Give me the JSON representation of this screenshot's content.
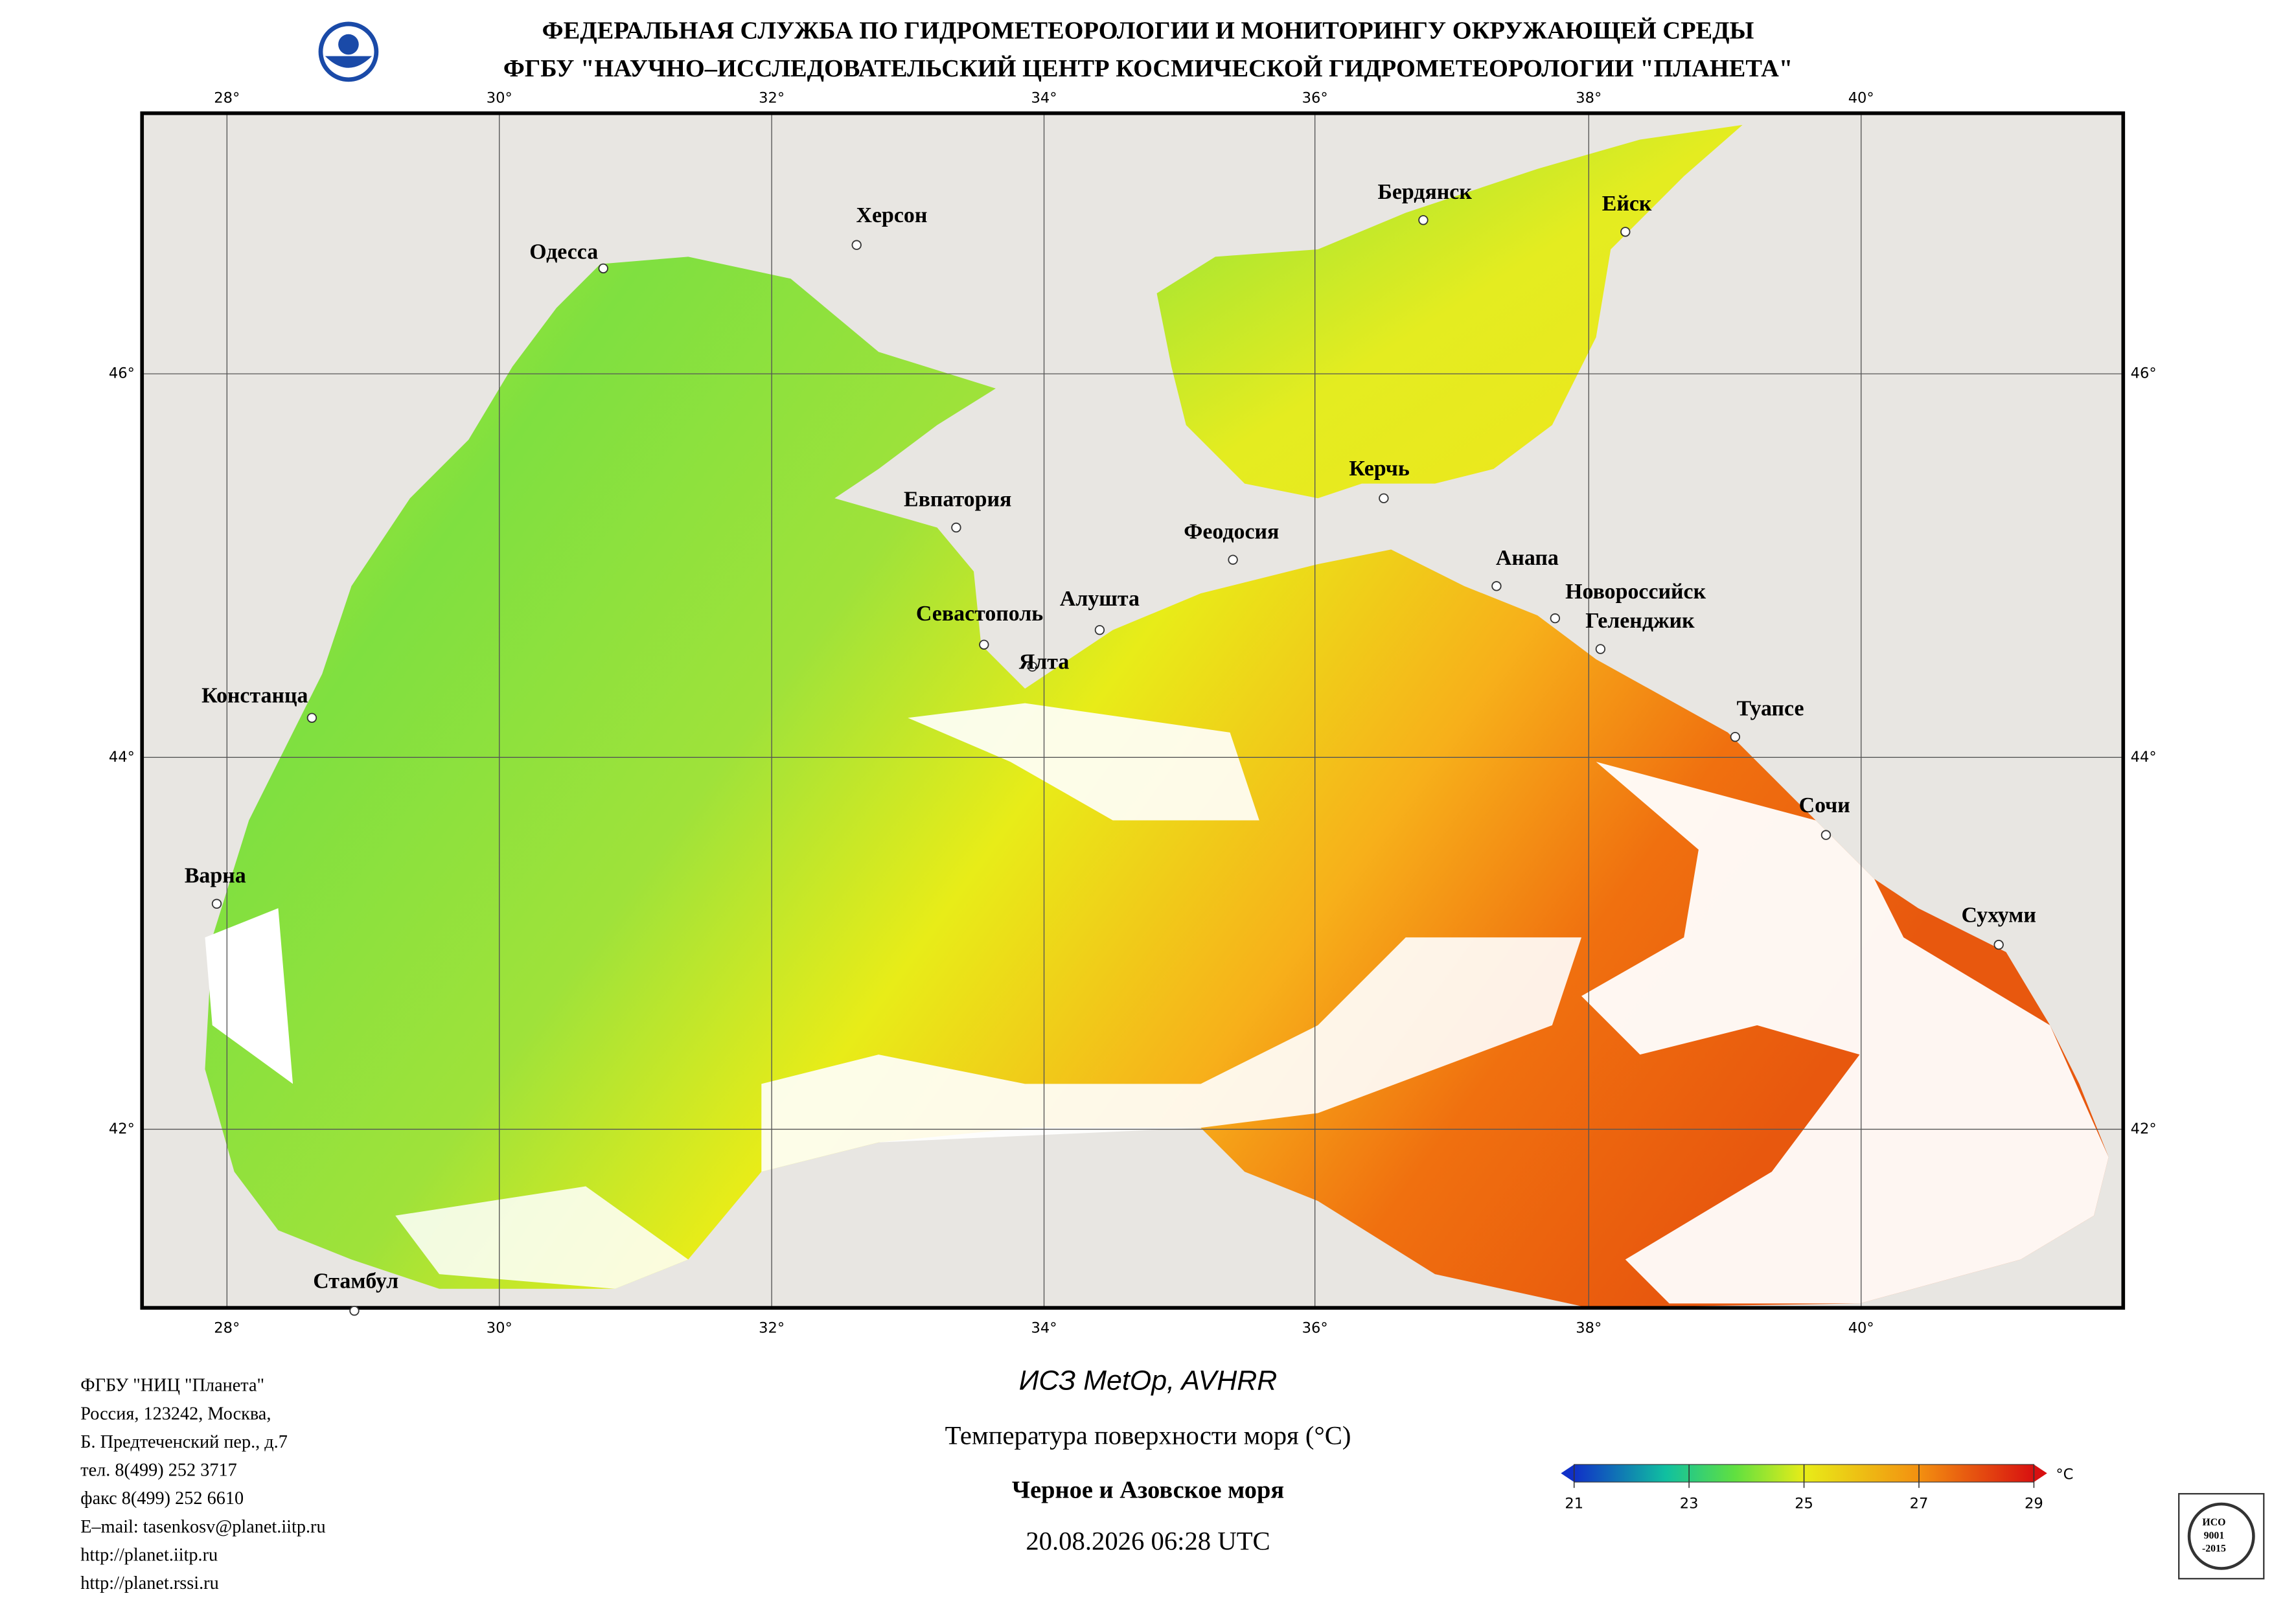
{
  "header": {
    "line1": "ФЕДЕРАЛЬНАЯ СЛУЖБА ПО ГИДРОМЕТЕОРОЛОГИИ И МОНИТОРИНГУ ОКРУЖАЮЩЕЙ СРЕДЫ",
    "line2": "ФГБУ \"НАУЧНО–ИССЛЕДОВАТЕЛЬСКИЙ ЦЕНТР КОСМИЧЕСКОЙ ГИДРОМЕТЕОРОЛОГИИ \"ПЛАНЕТА\""
  },
  "map": {
    "lon_labels": [
      "28°",
      "30°",
      "32°",
      "34°",
      "36°",
      "38°",
      "40°"
    ],
    "lat_labels": [
      "46°",
      "44°",
      "42°"
    ],
    "cities": [
      "Одесса",
      "Херсон",
      "Бердянск",
      "Ейск",
      "Евпатория",
      "Керчь",
      "Феодосия",
      "Анапа",
      "Новороссийск",
      "Геленджик",
      "Алушта",
      "Севастополь",
      "Ялта",
      "Туапсе",
      "Констанца",
      "Сочи",
      "Варна",
      "Сухуми",
      "Стамбул"
    ]
  },
  "footer": {
    "lines": [
      "ФГБУ \"НИЦ \"Планета\"",
      "Россия, 123242, Москва,",
      "Б. Предтеченский пер., д.7",
      "тел. 8(499) 252 3717",
      "факс 8(499) 252 6610",
      "E–mail: tasenkosv@planet.iitp.ru",
      "http://planet.iitp.ru",
      "http://planet.rssi.ru"
    ]
  },
  "caption": {
    "satellite": "ИСЗ MetOp, AVHRR",
    "parameter": "Температура поверхности моря (°С)",
    "region": "Черное и Азовское моря",
    "datetime": "20.08.2026 06:28 UTC"
  },
  "colorbar": {
    "ticks": [
      21,
      23,
      25,
      27,
      29
    ],
    "unit": "°C"
  },
  "badge": {
    "line1": "ИСО",
    "line2": "9001",
    "line3": "-2015"
  }
}
